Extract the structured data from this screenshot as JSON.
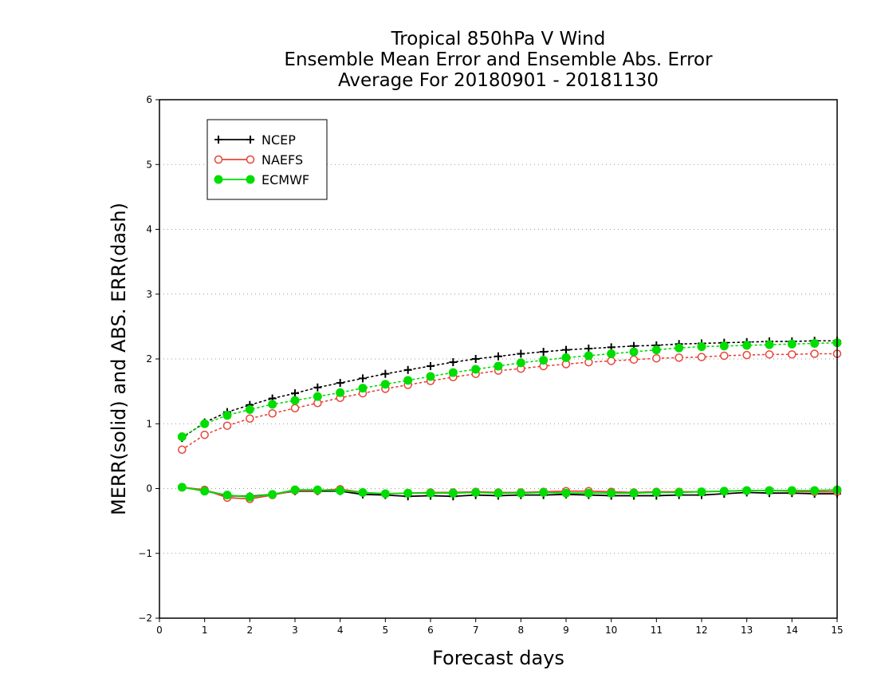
{
  "chart_data": {
    "type": "line",
    "title": [
      "Tropical 850hPa V Wind",
      "Ensemble Mean Error and Ensemble Abs. Error",
      "Average For 20180901 - 20181130"
    ],
    "xlabel": "Forecast days",
    "ylabel": "MERR(solid) and ABS. ERR(dash)",
    "xlim": [
      0,
      15
    ],
    "ylim": [
      -2,
      6
    ],
    "xticks": [
      0,
      1,
      2,
      3,
      4,
      5,
      6,
      7,
      8,
      9,
      10,
      11,
      12,
      13,
      14,
      15
    ],
    "yticks": [
      -2,
      -1,
      0,
      1,
      2,
      3,
      4,
      5,
      6
    ],
    "ytick_labels": [
      "−2",
      "−1",
      "0",
      "1",
      "2",
      "3",
      "4",
      "5",
      "6"
    ],
    "grid": "horizontal dotted",
    "legend_position": "top-left",
    "x": [
      0.5,
      1,
      1.5,
      2,
      2.5,
      3,
      3.5,
      4,
      4.5,
      5,
      5.5,
      6,
      6.5,
      7,
      7.5,
      8,
      8.5,
      9,
      9.5,
      10,
      10.5,
      11,
      11.5,
      12,
      12.5,
      13,
      13.5,
      14,
      14.5,
      15
    ],
    "series": [
      {
        "name": "NCEP",
        "color": "#000000",
        "marker": "plus",
        "mean_error": [
          0.02,
          -0.03,
          -0.11,
          -0.12,
          -0.09,
          -0.04,
          -0.04,
          -0.04,
          -0.09,
          -0.1,
          -0.12,
          -0.11,
          -0.12,
          -0.1,
          -0.11,
          -0.1,
          -0.1,
          -0.09,
          -0.1,
          -0.11,
          -0.11,
          -0.11,
          -0.1,
          -0.1,
          -0.08,
          -0.06,
          -0.07,
          -0.07,
          -0.08,
          -0.08
        ],
        "abs_error": [
          0.78,
          1.02,
          1.18,
          1.29,
          1.39,
          1.47,
          1.56,
          1.63,
          1.7,
          1.77,
          1.83,
          1.89,
          1.95,
          2.0,
          2.04,
          2.08,
          2.11,
          2.14,
          2.16,
          2.18,
          2.2,
          2.21,
          2.23,
          2.24,
          2.25,
          2.26,
          2.27,
          2.27,
          2.28,
          2.28
        ]
      },
      {
        "name": "NAEFS",
        "color": "#e8443a",
        "marker": "open-circle",
        "mean_error": [
          0.02,
          -0.02,
          -0.14,
          -0.16,
          -0.1,
          -0.03,
          -0.03,
          -0.01,
          -0.06,
          -0.08,
          -0.07,
          -0.06,
          -0.06,
          -0.05,
          -0.06,
          -0.06,
          -0.05,
          -0.04,
          -0.04,
          -0.05,
          -0.06,
          -0.05,
          -0.05,
          -0.05,
          -0.04,
          -0.03,
          -0.03,
          -0.04,
          -0.05,
          -0.05
        ],
        "abs_error": [
          0.6,
          0.83,
          0.97,
          1.08,
          1.16,
          1.24,
          1.32,
          1.4,
          1.47,
          1.54,
          1.6,
          1.66,
          1.72,
          1.77,
          1.82,
          1.85,
          1.89,
          1.92,
          1.95,
          1.97,
          1.99,
          2.01,
          2.02,
          2.03,
          2.05,
          2.06,
          2.07,
          2.07,
          2.08,
          2.08
        ]
      },
      {
        "name": "ECMWF",
        "color": "#00dd00",
        "marker": "filled-circle",
        "mean_error": [
          0.02,
          -0.04,
          -0.1,
          -0.13,
          -0.09,
          -0.02,
          -0.02,
          -0.03,
          -0.06,
          -0.08,
          -0.07,
          -0.07,
          -0.07,
          -0.06,
          -0.07,
          -0.07,
          -0.06,
          -0.07,
          -0.07,
          -0.07,
          -0.07,
          -0.06,
          -0.06,
          -0.05,
          -0.04,
          -0.03,
          -0.03,
          -0.03,
          -0.03,
          -0.02
        ],
        "abs_error": [
          0.8,
          1.0,
          1.13,
          1.22,
          1.3,
          1.36,
          1.42,
          1.48,
          1.55,
          1.61,
          1.67,
          1.73,
          1.79,
          1.84,
          1.89,
          1.94,
          1.98,
          2.02,
          2.05,
          2.08,
          2.11,
          2.14,
          2.17,
          2.19,
          2.2,
          2.21,
          2.22,
          2.23,
          2.24,
          2.25
        ]
      }
    ]
  }
}
